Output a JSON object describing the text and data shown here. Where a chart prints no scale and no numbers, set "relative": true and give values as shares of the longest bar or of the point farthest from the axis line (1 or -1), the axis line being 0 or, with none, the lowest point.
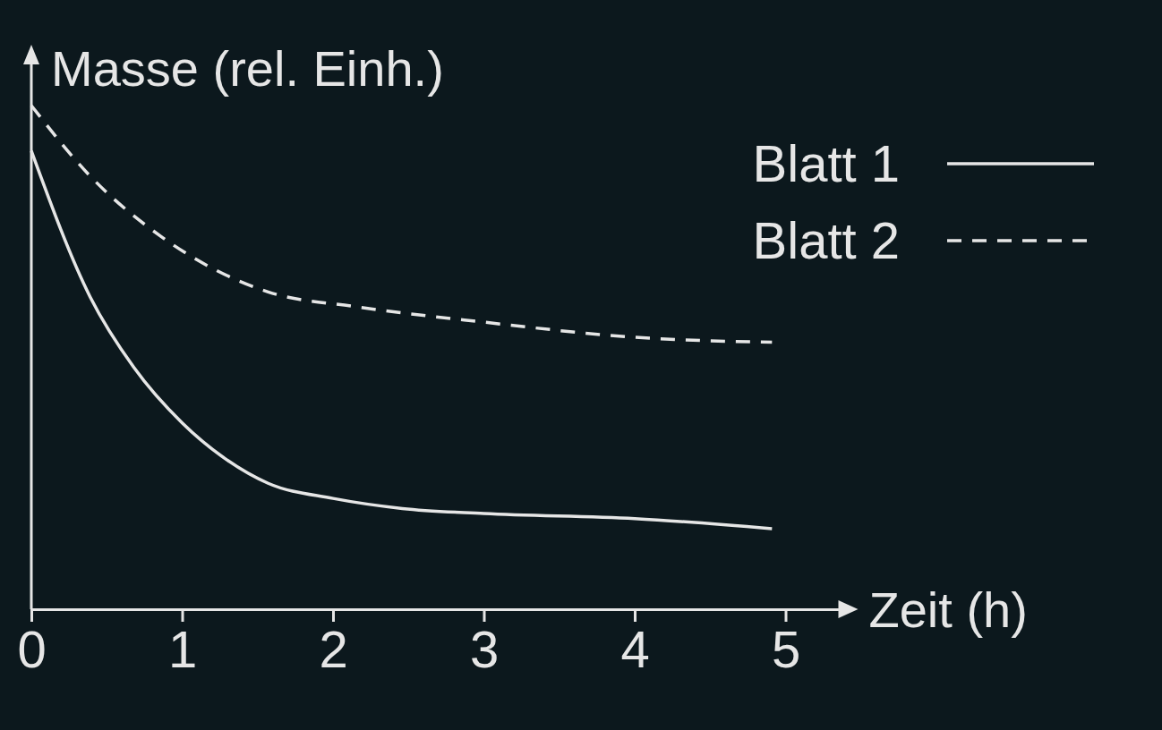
{
  "chart_data": {
    "type": "line",
    "relative": true,
    "xlabel": "Zeit (h)",
    "ylabel": "Masse (rel. Einh.)",
    "xlim": [
      0,
      5.35
    ],
    "xticks": [
      0,
      1,
      2,
      3,
      4,
      5
    ],
    "legend": "top right",
    "series": [
      {
        "name": "Blatt 1",
        "color": "#e6e6e6",
        "line_style": "solid",
        "x": [
          0,
          0.39,
          0.68,
          1,
          1.28,
          1.57,
          2,
          2.46,
          3,
          4,
          4.91
        ],
        "values": [
          0.91,
          0.62,
          0.48,
          0.37,
          0.3,
          0.25,
          0.22,
          0.2,
          0.19,
          0.18,
          0.16
        ]
      },
      {
        "name": "Blatt 2",
        "color": "#e6e6e6",
        "line_style": "dashed",
        "x": [
          0,
          0.39,
          0.86,
          1.57,
          2.17,
          3,
          4,
          4.91
        ],
        "values": [
          1,
          0.86,
          0.74,
          0.63,
          0.6,
          0.57,
          0.54,
          0.53
        ]
      }
    ]
  }
}
